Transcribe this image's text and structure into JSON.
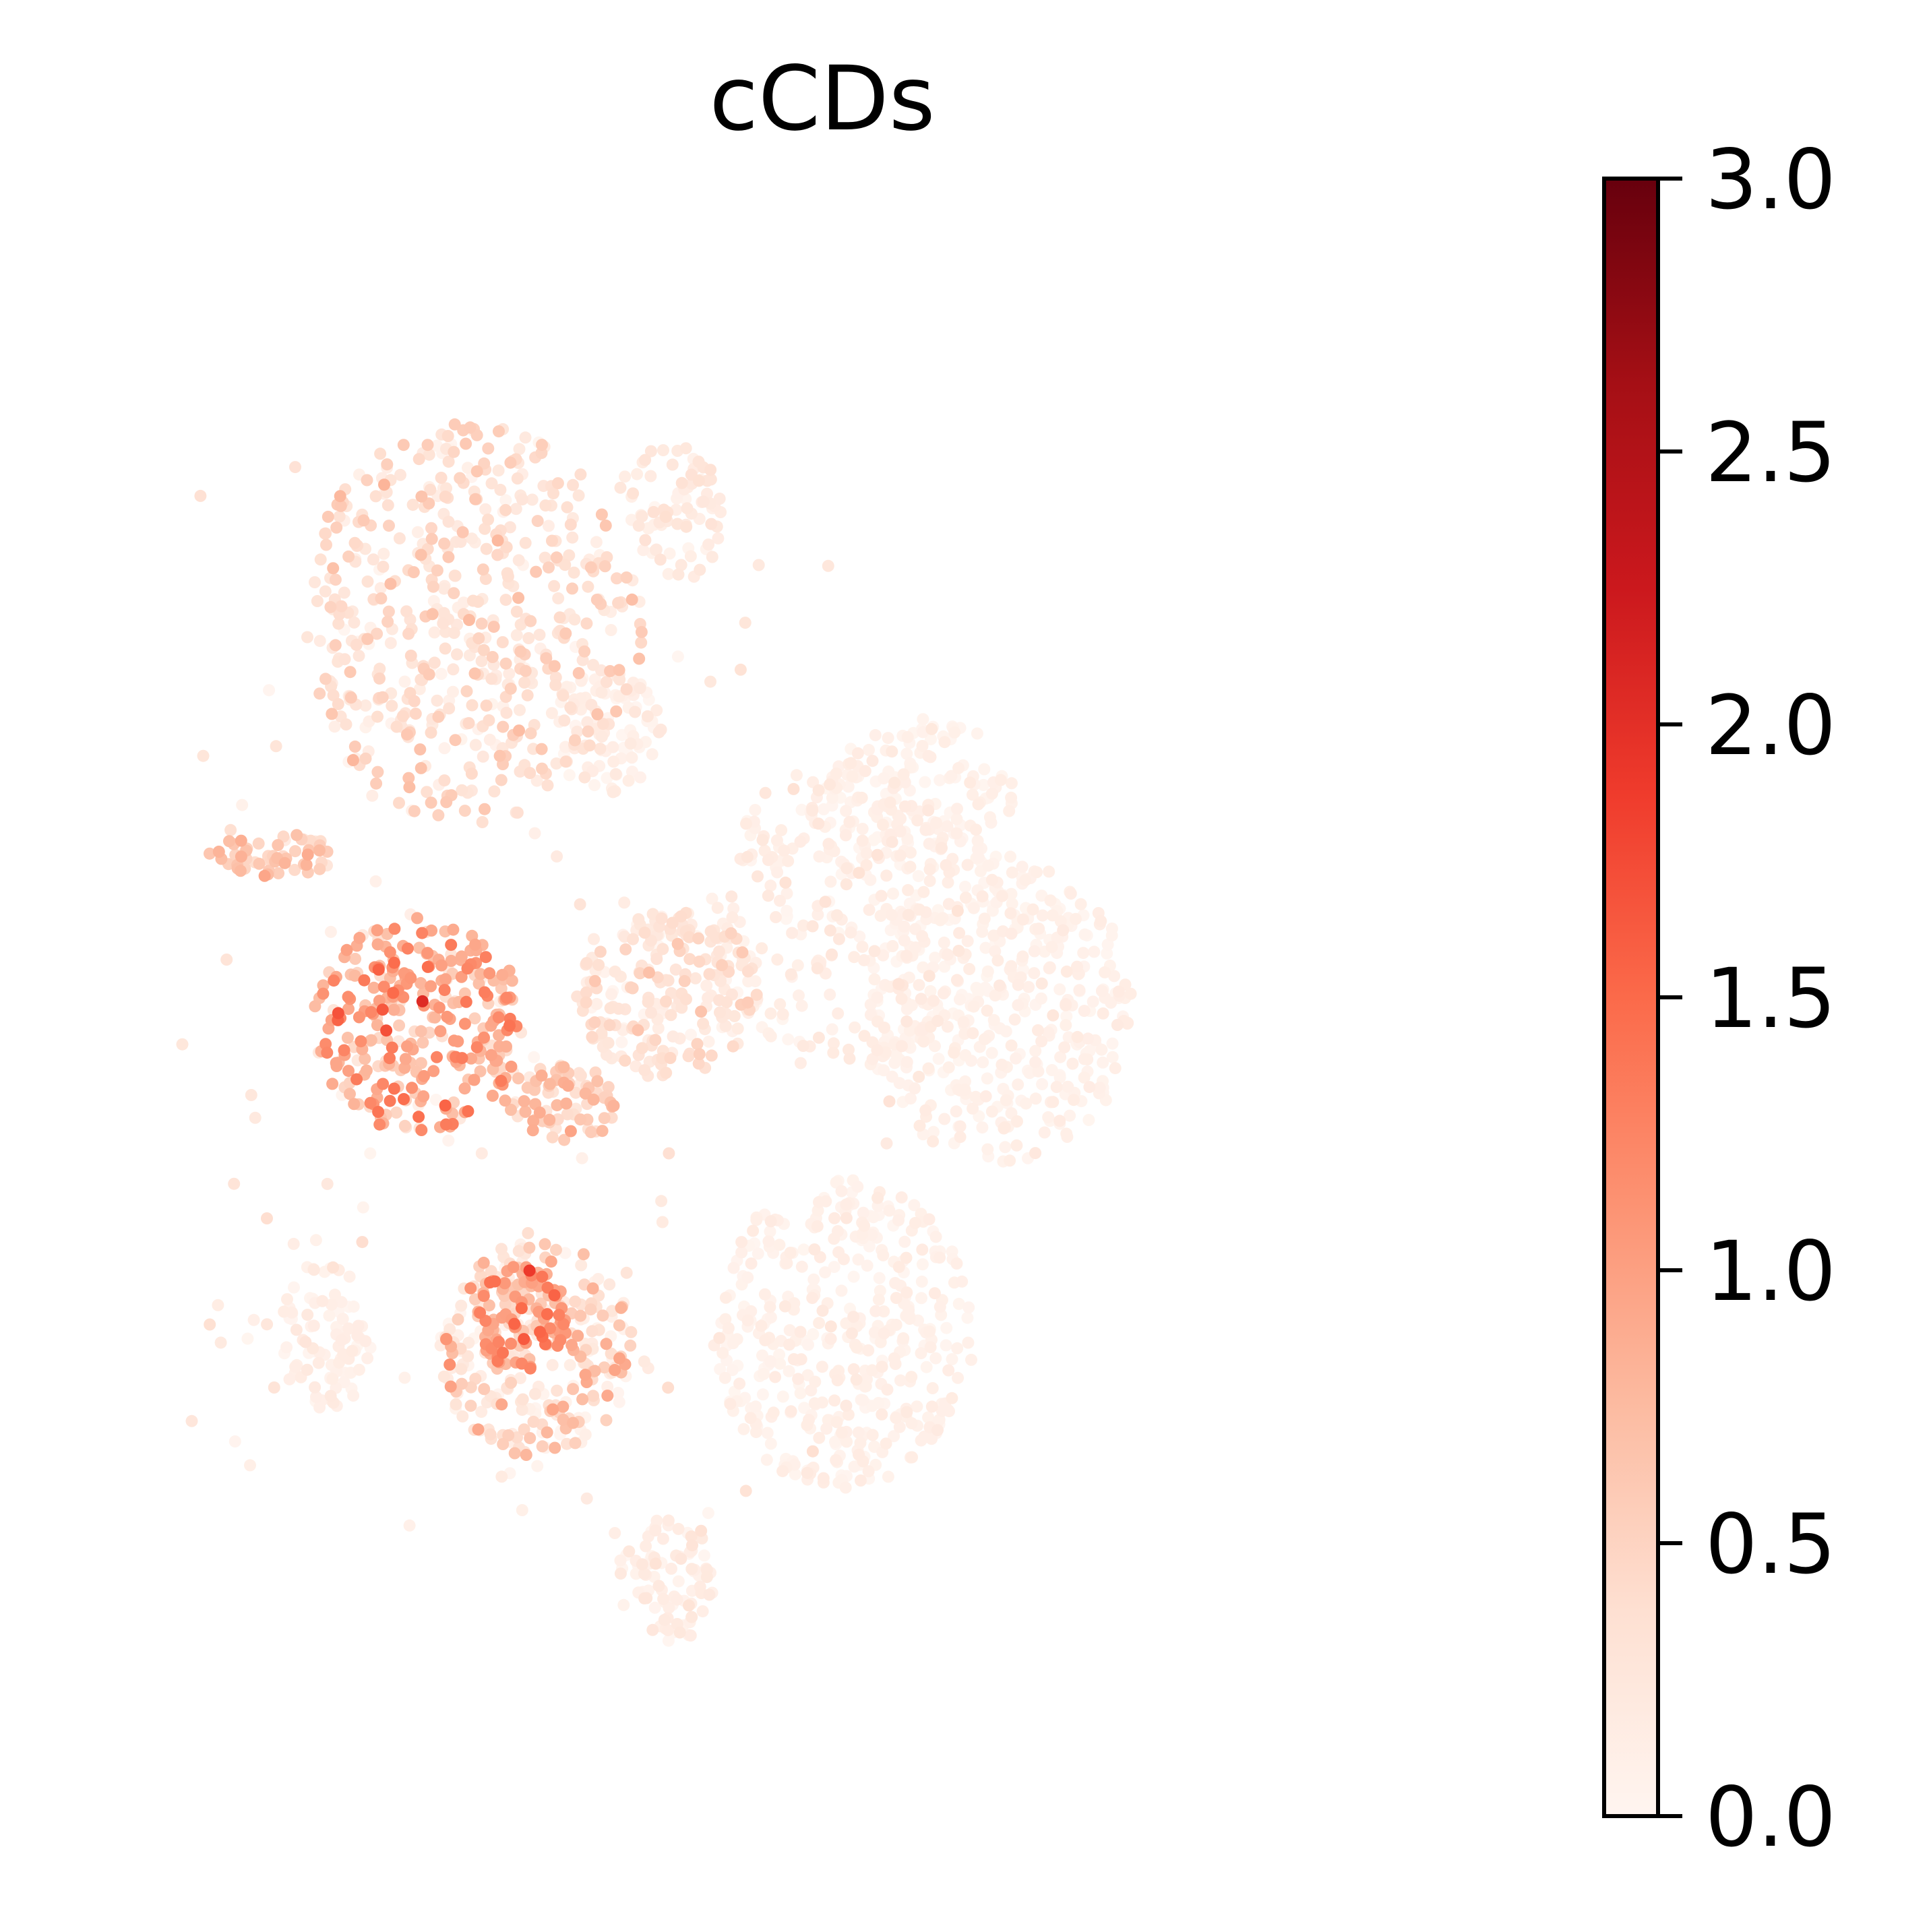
{
  "chart_data": {
    "type": "scatter",
    "title": "cCDs",
    "xlabel": "",
    "ylabel": "",
    "axes_visible": false,
    "grid": false,
    "colormap": {
      "name": "Reds",
      "stops": [
        "#fff5f0",
        "#fee0d2",
        "#fcbba1",
        "#fc9272",
        "#fb6a4a",
        "#ef3b2c",
        "#cb181d",
        "#a50f15",
        "#67000d"
      ],
      "vmin": 0.0,
      "vmax": 3.0,
      "ticks": [
        0.0,
        0.5,
        1.0,
        1.5,
        2.0,
        2.5,
        3.0
      ],
      "tick_labels": [
        "0.0",
        "0.5",
        "1.0",
        "1.5",
        "2.0",
        "2.5",
        "3.0"
      ],
      "position": "right"
    },
    "xlim": [
      0,
      100
    ],
    "ylim": [
      0,
      100
    ],
    "clusters": [
      {
        "id": "upper-left-large",
        "cx": 27,
        "cy": 74,
        "rx": 13,
        "ry": 13,
        "n": 520,
        "mean": 0.35,
        "sd": 0.18
      },
      {
        "id": "upper-right-of-large",
        "cx": 37,
        "cy": 67,
        "rx": 4.5,
        "ry": 4,
        "n": 90,
        "mean": 0.12,
        "sd": 0.08
      },
      {
        "id": "upper-small-top",
        "cx": 42,
        "cy": 81,
        "rx": 4,
        "ry": 5,
        "n": 80,
        "mean": 0.18,
        "sd": 0.1
      },
      {
        "id": "left-stripe",
        "cx": 12,
        "cy": 59,
        "rx": 5,
        "ry": 1.4,
        "n": 60,
        "mean": 0.55,
        "sd": 0.18
      },
      {
        "id": "left-middle",
        "cx": 23,
        "cy": 48,
        "rx": 8,
        "ry": 7,
        "n": 300,
        "mean": 0.85,
        "sd": 0.35
      },
      {
        "id": "left-middle-lower",
        "cx": 34,
        "cy": 43,
        "rx": 4.5,
        "ry": 2.5,
        "n": 80,
        "mean": 0.55,
        "sd": 0.2
      },
      {
        "id": "center-mid",
        "cx": 42,
        "cy": 50,
        "rx": 7,
        "ry": 5.5,
        "n": 220,
        "mean": 0.3,
        "sd": 0.15
      },
      {
        "id": "center-right-cloud",
        "cx": 55,
        "cy": 55,
        "rx": 10,
        "ry": 10,
        "n": 260,
        "mean": 0.12,
        "sd": 0.08
      },
      {
        "id": "right-large",
        "cx": 67,
        "cy": 49,
        "rx": 10,
        "ry": 10,
        "n": 420,
        "mean": 0.08,
        "sd": 0.06
      },
      {
        "id": "right-upper",
        "cx": 61,
        "cy": 63,
        "rx": 7,
        "ry": 5,
        "n": 150,
        "mean": 0.08,
        "sd": 0.06
      },
      {
        "id": "lower-right-large",
        "cx": 55,
        "cy": 28,
        "rx": 10,
        "ry": 10,
        "n": 420,
        "mean": 0.08,
        "sd": 0.06
      },
      {
        "id": "lower-left-small",
        "cx": 16,
        "cy": 28,
        "rx": 3.5,
        "ry": 5,
        "n": 90,
        "mean": 0.1,
        "sd": 0.07
      },
      {
        "id": "lower-middle",
        "cx": 32,
        "cy": 27,
        "rx": 7.5,
        "ry": 7,
        "n": 280,
        "mean": 0.35,
        "sd": 0.3
      },
      {
        "id": "lower-middle-hot",
        "cx": 31,
        "cy": 29,
        "rx": 3.5,
        "ry": 3.5,
        "n": 90,
        "mean": 1.0,
        "sd": 0.3
      },
      {
        "id": "bottom-small",
        "cx": 42,
        "cy": 12,
        "rx": 4,
        "ry": 4,
        "n": 90,
        "mean": 0.12,
        "sd": 0.08
      }
    ],
    "outliers_n": 120
  }
}
